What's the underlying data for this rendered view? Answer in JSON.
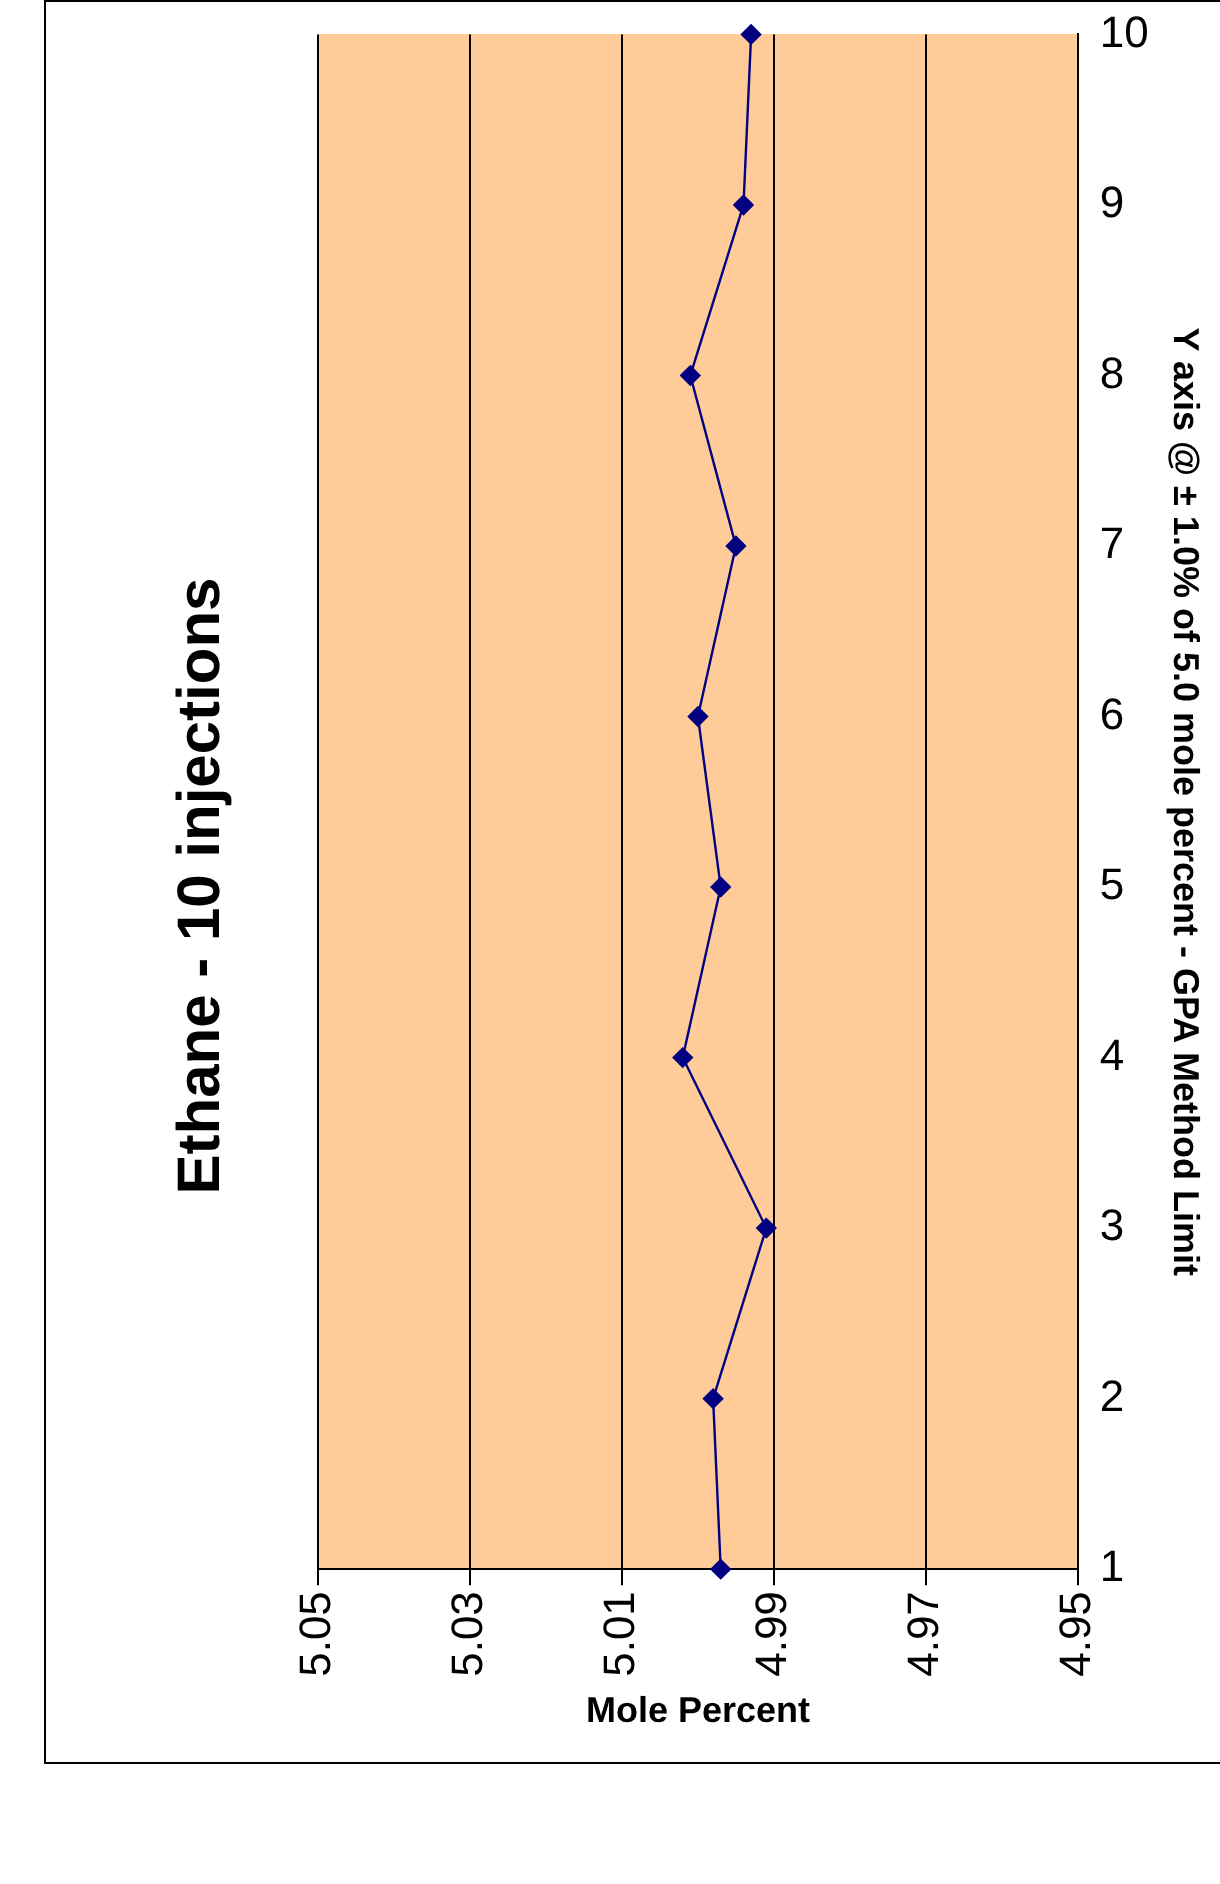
{
  "chart_data": {
    "type": "line",
    "orientation": "horizontal",
    "title": "Ethane - 10 injections",
    "xlabel": "Mole Percent",
    "ylabel": "Y axis @ ± 1.0% of 5.0 mole percent - GPA Method Limit",
    "categories": [
      "10",
      "9",
      "8",
      "7",
      "6",
      "5",
      "4",
      "3",
      "2",
      "1"
    ],
    "series": [
      {
        "color": "#000080",
        "values": [
          4.993,
          4.994,
          5.001,
          4.995,
          5.0,
          4.997,
          5.002,
          4.991,
          4.998,
          4.997
        ]
      }
    ],
    "xlim": [
      5.05,
      4.95
    ],
    "xticks": [
      5.05,
      5.03,
      5.01,
      4.99,
      4.97,
      4.95
    ],
    "grid": "x",
    "legend": false,
    "marker": "diamond",
    "line_style": "solid"
  }
}
